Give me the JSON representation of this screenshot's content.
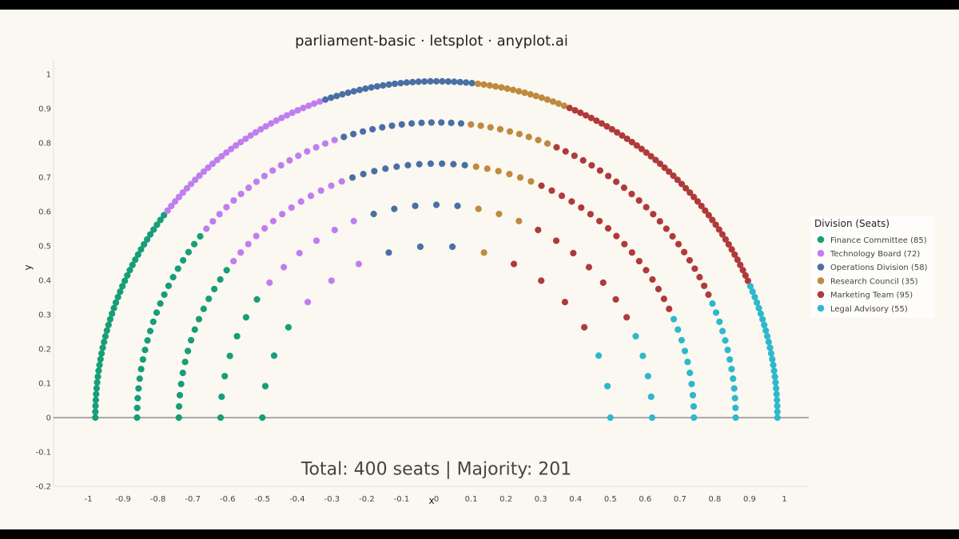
{
  "chart_data": {
    "type": "scatter",
    "subtype": "parliament",
    "title": "parliament-basic · letsplot · anyplot.ai",
    "xlabel": "x",
    "ylabel": "y",
    "xlim": [
      -1.1,
      1.07
    ],
    "ylim": [
      -0.2,
      1.04
    ],
    "x_ticks": [
      -1,
      -0.9,
      -0.8,
      -0.7,
      -0.6,
      -0.5,
      -0.4,
      -0.3,
      -0.2,
      -0.1,
      0,
      0.1,
      0.2,
      0.3,
      0.4,
      0.5,
      0.6,
      0.7,
      0.8,
      0.9,
      1
    ],
    "y_ticks": [
      -0.2,
      -0.1,
      0,
      0.1,
      0.2,
      0.3,
      0.4,
      0.5,
      0.6,
      0.7,
      0.8,
      0.9,
      1
    ],
    "rows": [
      {
        "radius": 0.5,
        "seats": 18
      },
      {
        "radius": 0.62,
        "seats": 33
      },
      {
        "radius": 0.74,
        "seats": 72
      },
      {
        "radius": 0.86,
        "seats": 96
      },
      {
        "radius": 0.98,
        "seats": 181
      }
    ],
    "baseline_y": 0,
    "annotation": "Total: 400 seats | Majority: 201",
    "annotation_position": [
      0,
      -0.15
    ],
    "legend_title": "Division (Seats)",
    "legend_position": "right",
    "series": [
      {
        "name": "Finance Committee (85)",
        "seats": 85,
        "color": "#169E78"
      },
      {
        "name": "Technology Board (72)",
        "seats": 72,
        "color": "#C07DF0"
      },
      {
        "name": "Operations Division (58)",
        "seats": 58,
        "color": "#4A6FA5"
      },
      {
        "name": "Research Council (35)",
        "seats": 35,
        "color": "#BF8A3E"
      },
      {
        "name": "Marketing Team (95)",
        "seats": 95,
        "color": "#B03A3A"
      },
      {
        "name": "Legal Advisory (55)",
        "seats": 55,
        "color": "#2FB8CC"
      }
    ],
    "grid": false
  },
  "colors": {
    "background": "#FAF8F1",
    "frame": "#000000",
    "axis_line": "#E3E1DA",
    "baseline": "#A9A9A9",
    "tick_text": "#444444",
    "title_text": "#222222",
    "annotation_text": "#444444",
    "legend_bg": "#FFFFFF"
  }
}
